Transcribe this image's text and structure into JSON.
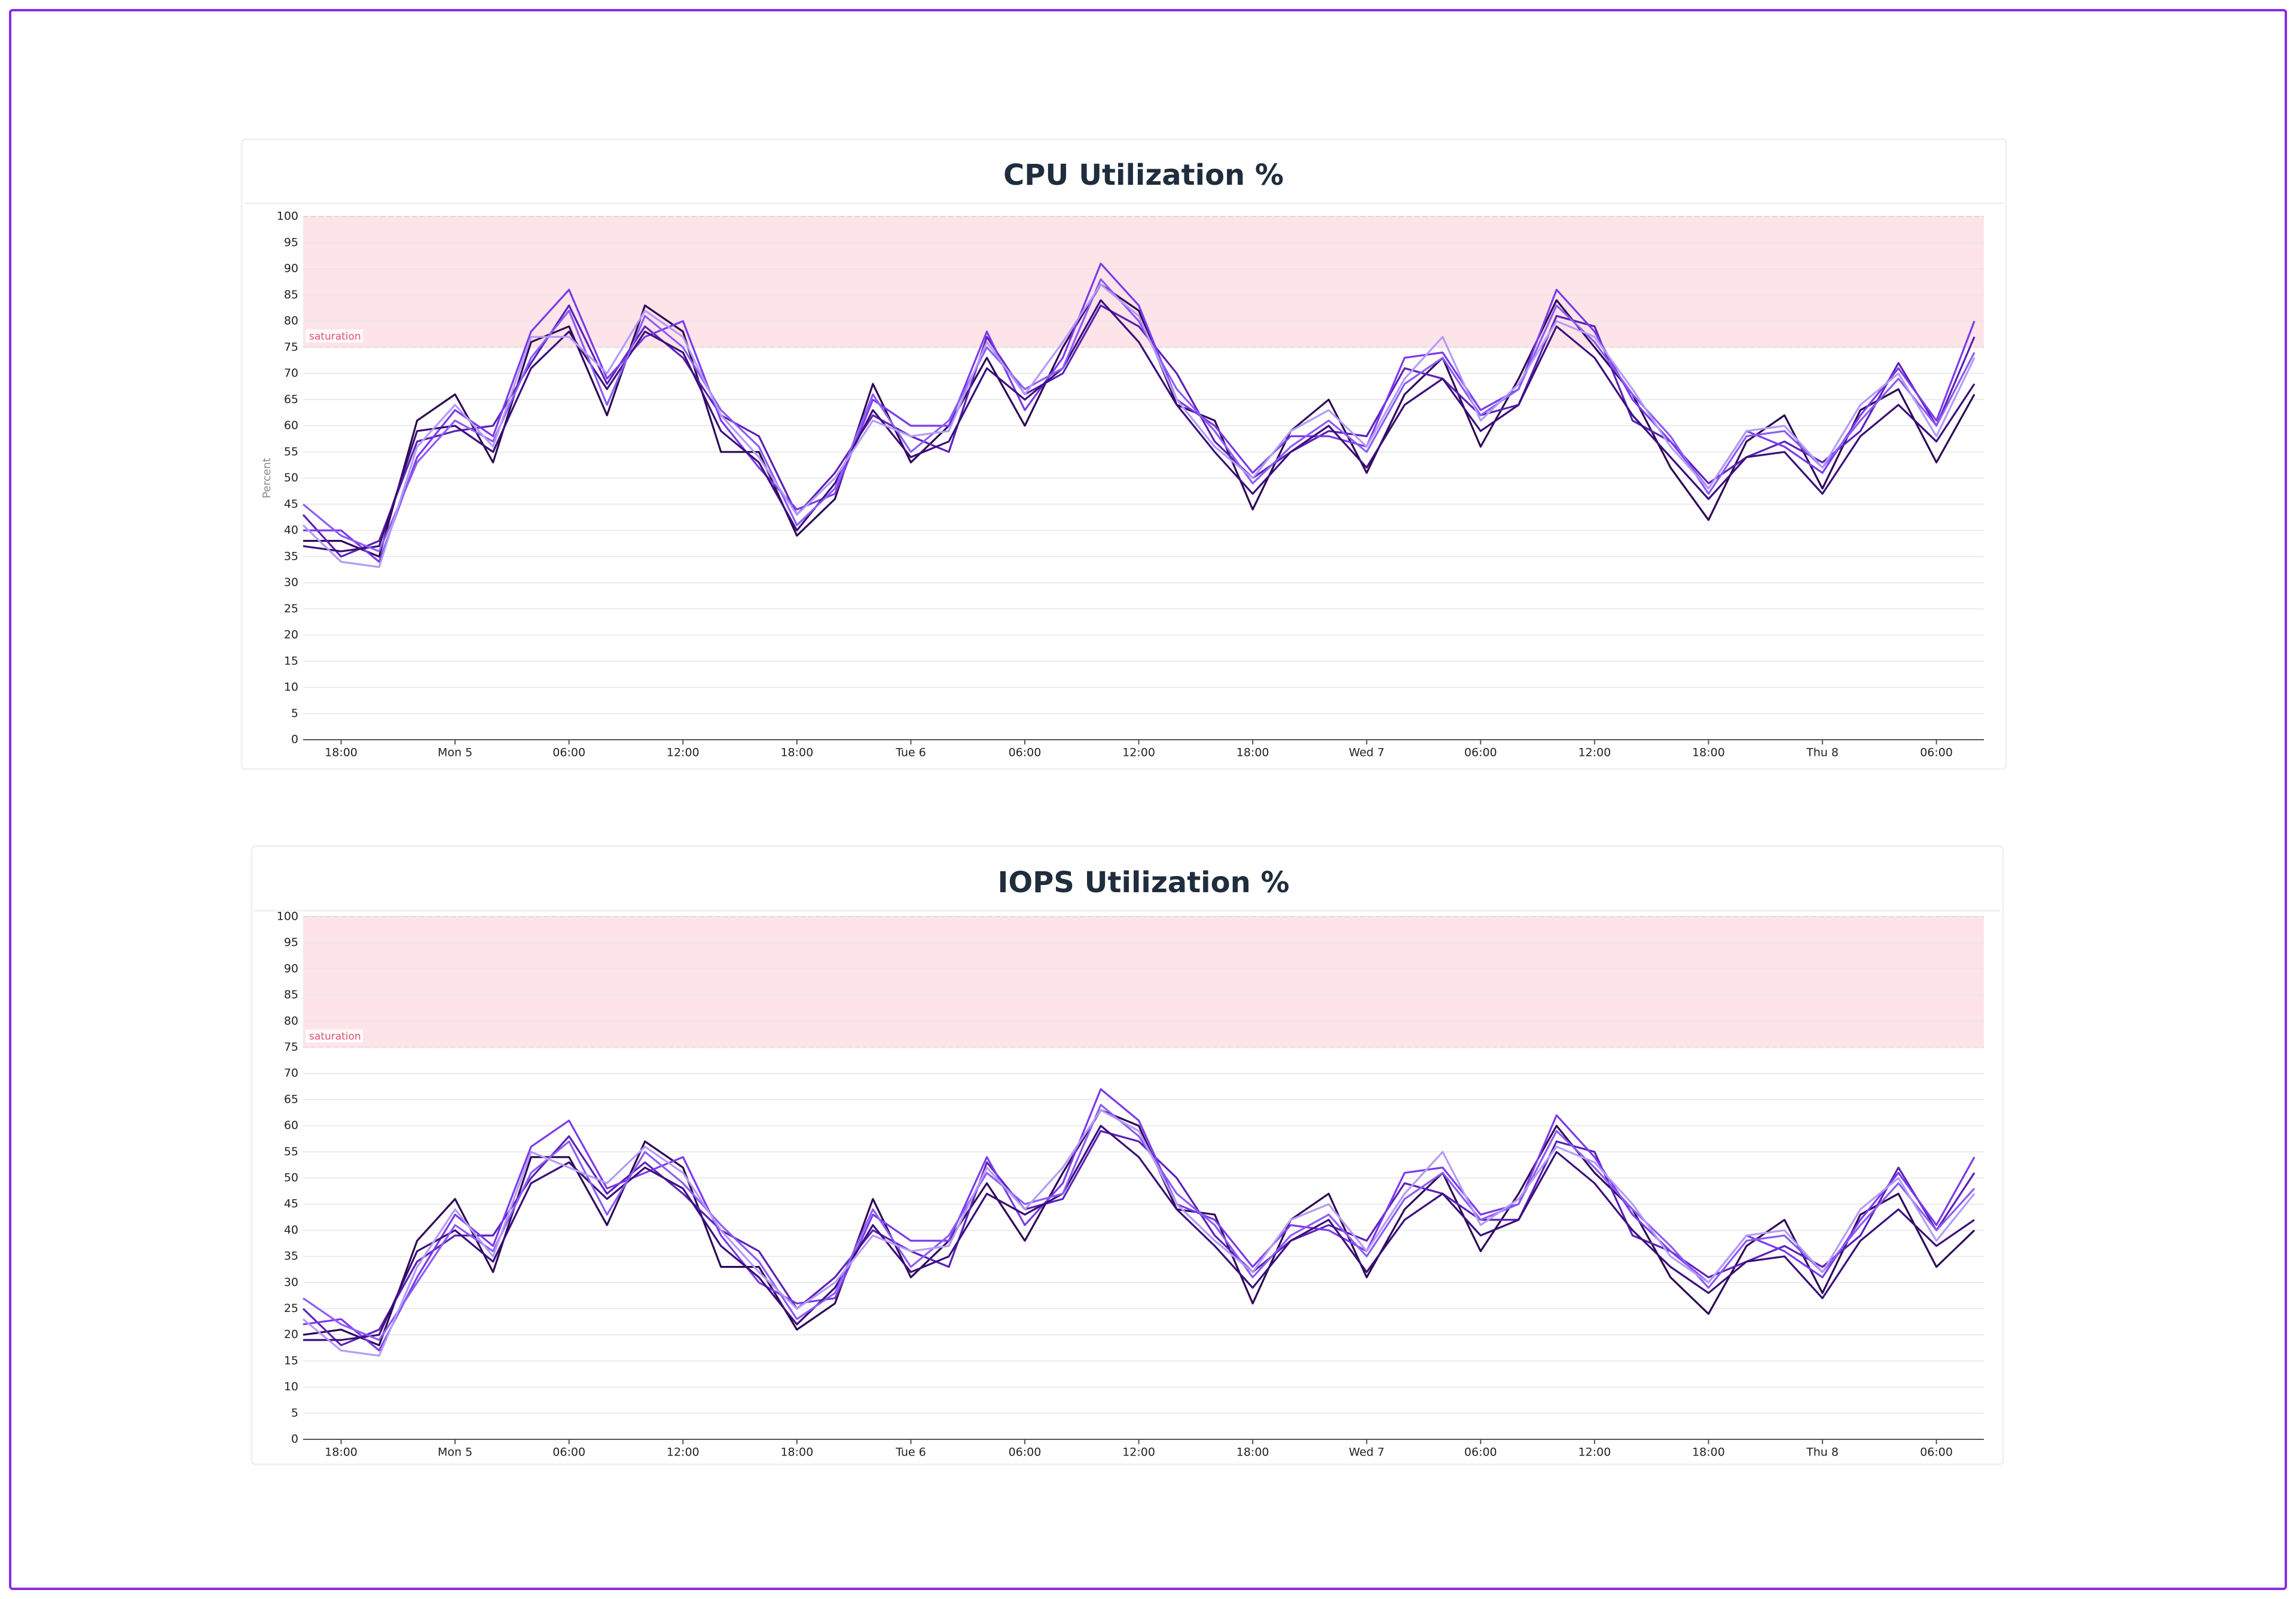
{
  "chart_data": [
    {
      "type": "line",
      "title": "CPU Utilization %",
      "ylabel": "Percent",
      "x": [
        -8,
        -6,
        -4,
        -2,
        0,
        2,
        4,
        6,
        8,
        10,
        12,
        14,
        16,
        18,
        20,
        22,
        24,
        26,
        28,
        30,
        32,
        34,
        36,
        38,
        40,
        42,
        44,
        46,
        48,
        50,
        52,
        54,
        56,
        58,
        60,
        62,
        64,
        66,
        68,
        70,
        72,
        74,
        76,
        78,
        80
      ],
      "xlim": [
        -8,
        80.5
      ],
      "xticks": [
        {
          "value": -6,
          "label": "18:00"
        },
        {
          "value": 0,
          "label": "Mon 5"
        },
        {
          "value": 6,
          "label": "06:00"
        },
        {
          "value": 12,
          "label": "12:00"
        },
        {
          "value": 18,
          "label": "18:00"
        },
        {
          "value": 24,
          "label": "Tue 6"
        },
        {
          "value": 30,
          "label": "06:00"
        },
        {
          "value": 36,
          "label": "12:00"
        },
        {
          "value": 42,
          "label": "18:00"
        },
        {
          "value": 48,
          "label": "Wed 7"
        },
        {
          "value": 54,
          "label": "06:00"
        },
        {
          "value": 60,
          "label": "12:00"
        },
        {
          "value": 66,
          "label": "18:00"
        },
        {
          "value": 72,
          "label": "Thu 8"
        },
        {
          "value": 78,
          "label": "06:00"
        }
      ],
      "ylim": [
        0,
        100
      ],
      "yticks": [
        0,
        5,
        10,
        15,
        20,
        25,
        30,
        35,
        40,
        45,
        50,
        55,
        60,
        65,
        70,
        75,
        80,
        85,
        90,
        95,
        100
      ],
      "grid": true,
      "band": {
        "range": [
          75,
          100
        ],
        "label": "saturation",
        "color": "#fde4e8"
      },
      "series": [
        {
          "color": "#2e0854",
          "values": [
            38,
            38,
            35,
            61,
            66,
            53,
            76,
            79,
            62,
            83,
            78,
            55,
            55,
            39,
            46,
            68,
            53,
            60,
            73,
            60,
            75,
            87,
            82,
            64,
            61,
            44,
            59,
            65,
            51,
            66,
            73,
            56,
            69,
            84,
            75,
            66,
            52,
            42,
            57,
            62,
            48,
            63,
            67,
            53,
            66
          ]
        },
        {
          "color": "#5b21b6",
          "values": [
            43,
            35,
            38,
            57,
            59,
            60,
            72,
            83,
            68,
            79,
            73,
            62,
            58,
            43,
            51,
            62,
            58,
            55,
            77,
            66,
            70,
            83,
            79,
            70,
            57,
            50,
            55,
            59,
            58,
            71,
            69,
            62,
            64,
            81,
            79,
            61,
            57,
            49,
            54,
            57,
            53,
            59,
            72,
            60,
            77
          ]
        },
        {
          "color": "#7c3aed",
          "values": [
            40,
            40,
            34,
            54,
            63,
            58,
            78,
            86,
            69,
            77,
            80,
            61,
            52,
            44,
            47,
            65,
            60,
            60,
            78,
            63,
            73,
            91,
            83,
            65,
            60,
            51,
            58,
            58,
            56,
            73,
            74,
            63,
            67,
            86,
            78,
            65,
            57,
            48,
            59,
            56,
            51,
            62,
            71,
            61,
            80
          ]
        },
        {
          "color": "#3b0f7a",
          "values": [
            37,
            36,
            37,
            59,
            60,
            55,
            71,
            78,
            67,
            78,
            74,
            59,
            53,
            40,
            49,
            63,
            54,
            57,
            71,
            65,
            71,
            84,
            76,
            64,
            55,
            47,
            55,
            60,
            52,
            64,
            69,
            59,
            64,
            79,
            73,
            62,
            54,
            46,
            54,
            55,
            47,
            58,
            64,
            57,
            68
          ]
        },
        {
          "color": "#8b5cf6",
          "values": [
            45,
            39,
            36,
            53,
            61,
            57,
            73,
            82,
            64,
            81,
            75,
            63,
            56,
            41,
            48,
            66,
            55,
            61,
            75,
            67,
            71,
            88,
            80,
            67,
            59,
            49,
            56,
            61,
            55,
            68,
            73,
            62,
            67,
            83,
            76,
            66,
            58,
            47,
            58,
            59,
            52,
            61,
            69,
            60,
            74
          ]
        },
        {
          "color": "#b39cf7",
          "values": [
            41,
            34,
            33,
            56,
            64,
            56,
            77,
            77,
            70,
            82,
            77,
            62,
            54,
            43,
            50,
            61,
            58,
            59,
            76,
            66,
            76,
            87,
            81,
            65,
            56,
            50,
            59,
            63,
            56,
            69,
            77,
            61,
            68,
            80,
            77,
            67,
            56,
            48,
            59,
            60,
            52,
            64,
            70,
            58,
            73
          ]
        }
      ]
    },
    {
      "type": "line",
      "title": "IOPS Utilization %",
      "x": [
        -8,
        -6,
        -4,
        -2,
        0,
        2,
        4,
        6,
        8,
        10,
        12,
        14,
        16,
        18,
        20,
        22,
        24,
        26,
        28,
        30,
        32,
        34,
        36,
        38,
        40,
        42,
        44,
        46,
        48,
        50,
        52,
        54,
        56,
        58,
        60,
        62,
        64,
        66,
        68,
        70,
        72,
        74,
        76,
        78,
        80
      ],
      "xlim": [
        -8,
        80.5
      ],
      "xticks": [
        {
          "value": -6,
          "label": "18:00"
        },
        {
          "value": 0,
          "label": "Mon 5"
        },
        {
          "value": 6,
          "label": "06:00"
        },
        {
          "value": 12,
          "label": "12:00"
        },
        {
          "value": 18,
          "label": "18:00"
        },
        {
          "value": 24,
          "label": "Tue 6"
        },
        {
          "value": 30,
          "label": "06:00"
        },
        {
          "value": 36,
          "label": "12:00"
        },
        {
          "value": 42,
          "label": "18:00"
        },
        {
          "value": 48,
          "label": "Wed 7"
        },
        {
          "value": 54,
          "label": "06:00"
        },
        {
          "value": 60,
          "label": "12:00"
        },
        {
          "value": 66,
          "label": "18:00"
        },
        {
          "value": 72,
          "label": "Thu 8"
        },
        {
          "value": 78,
          "label": "06:00"
        }
      ],
      "ylim": [
        0,
        100
      ],
      "yticks": [
        0,
        5,
        10,
        15,
        20,
        25,
        30,
        35,
        40,
        45,
        50,
        55,
        60,
        65,
        70,
        75,
        80,
        85,
        90,
        95,
        100
      ],
      "grid": true,
      "band": {
        "range": [
          75,
          100
        ],
        "label": "saturation",
        "color": "#fde4e8"
      },
      "series": [
        {
          "color": "#2e0854",
          "values": [
            20,
            21,
            18,
            38,
            46,
            32,
            54,
            54,
            41,
            57,
            52,
            33,
            33,
            21,
            26,
            46,
            31,
            38,
            49,
            38,
            51,
            63,
            60,
            44,
            43,
            26,
            42,
            47,
            31,
            44,
            51,
            36,
            47,
            60,
            51,
            44,
            31,
            24,
            37,
            42,
            28,
            43,
            47,
            33,
            40
          ]
        },
        {
          "color": "#5b21b6",
          "values": [
            25,
            18,
            21,
            34,
            39,
            39,
            50,
            58,
            47,
            53,
            47,
            40,
            36,
            25,
            31,
            40,
            36,
            33,
            53,
            44,
            46,
            59,
            57,
            50,
            39,
            32,
            38,
            41,
            38,
            49,
            47,
            42,
            42,
            57,
            55,
            39,
            36,
            31,
            34,
            37,
            33,
            39,
            52,
            40,
            51
          ]
        },
        {
          "color": "#7c3aed",
          "values": [
            22,
            23,
            17,
            31,
            43,
            37,
            56,
            61,
            48,
            51,
            54,
            39,
            30,
            26,
            27,
            43,
            38,
            38,
            54,
            41,
            49,
            67,
            61,
            45,
            42,
            33,
            41,
            40,
            36,
            51,
            52,
            43,
            45,
            62,
            54,
            43,
            36,
            30,
            39,
            36,
            31,
            42,
            51,
            41,
            54
          ]
        },
        {
          "color": "#3b0f7a",
          "values": [
            19,
            19,
            20,
            36,
            40,
            34,
            49,
            53,
            46,
            52,
            48,
            37,
            31,
            22,
            29,
            41,
            32,
            35,
            47,
            43,
            47,
            60,
            54,
            44,
            37,
            29,
            38,
            42,
            32,
            42,
            47,
            39,
            42,
            55,
            49,
            40,
            33,
            28,
            34,
            35,
            27,
            38,
            44,
            37,
            42
          ]
        },
        {
          "color": "#8b5cf6",
          "values": [
            27,
            22,
            19,
            30,
            41,
            36,
            51,
            57,
            43,
            55,
            49,
            41,
            34,
            23,
            28,
            44,
            33,
            39,
            51,
            45,
            47,
            64,
            58,
            47,
            41,
            31,
            39,
            43,
            35,
            46,
            51,
            42,
            45,
            59,
            52,
            44,
            37,
            29,
            38,
            39,
            32,
            41,
            49,
            40,
            48
          ]
        },
        {
          "color": "#b39cf7",
          "values": [
            23,
            17,
            16,
            33,
            44,
            35,
            55,
            52,
            49,
            56,
            51,
            40,
            32,
            25,
            30,
            39,
            36,
            37,
            52,
            44,
            52,
            63,
            59,
            45,
            38,
            32,
            42,
            45,
            36,
            47,
            55,
            41,
            46,
            56,
            53,
            45,
            35,
            30,
            39,
            40,
            32,
            44,
            50,
            38,
            47
          ]
        }
      ]
    }
  ]
}
